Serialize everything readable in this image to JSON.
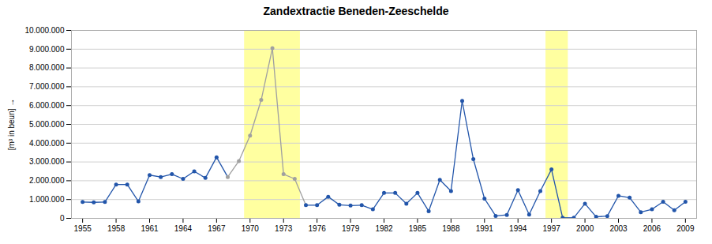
{
  "chart_data": {
    "type": "line",
    "title": "Zandextractie Beneden-Zeeschelde",
    "ylabel": "[m³ in beun]",
    "x": [
      1955,
      1956,
      1957,
      1958,
      1959,
      1960,
      1961,
      1962,
      1963,
      1964,
      1965,
      1966,
      1967,
      1968,
      1969,
      1970,
      1971,
      1972,
      1973,
      1974,
      1975,
      1976,
      1977,
      1978,
      1979,
      1980,
      1981,
      1982,
      1983,
      1984,
      1985,
      1986,
      1987,
      1988,
      1989,
      1990,
      1991,
      1992,
      1993,
      1994,
      1995,
      1996,
      1997,
      1998,
      1999,
      2000,
      2001,
      2002,
      2003,
      2004,
      2005,
      2006,
      2007,
      2008,
      2009
    ],
    "values": [
      870000,
      850000,
      870000,
      1800000,
      1800000,
      900000,
      2300000,
      2200000,
      2350000,
      2100000,
      2500000,
      2150000,
      3250000,
      2200000,
      3050000,
      4400000,
      6300000,
      9050000,
      2350000,
      2100000,
      700000,
      700000,
      1150000,
      720000,
      680000,
      700000,
      480000,
      1350000,
      1350000,
      780000,
      1350000,
      380000,
      2050000,
      1450000,
      6250000,
      3150000,
      1050000,
      130000,
      180000,
      1500000,
      200000,
      1450000,
      2600000,
      30000,
      30000,
      780000,
      80000,
      120000,
      1200000,
      1100000,
      330000,
      480000,
      880000,
      430000,
      880000
    ],
    "colors": [
      "#2255aa",
      "#2255aa",
      "#2255aa",
      "#2255aa",
      "#2255aa",
      "#2255aa",
      "#2255aa",
      "#2255aa",
      "#2255aa",
      "#2255aa",
      "#2255aa",
      "#2255aa",
      "#2255aa",
      "#a0a0a0",
      "#a0a0a0",
      "#a0a0a0",
      "#a0a0a0",
      "#a0a0a0",
      "#a0a0a0",
      "#a0a0a0",
      "#2255aa",
      "#2255aa",
      "#2255aa",
      "#2255aa",
      "#2255aa",
      "#2255aa",
      "#2255aa",
      "#2255aa",
      "#2255aa",
      "#2255aa",
      "#2255aa",
      "#2255aa",
      "#2255aa",
      "#2255aa",
      "#2255aa",
      "#2255aa",
      "#2255aa",
      "#2255aa",
      "#2255aa",
      "#2255aa",
      "#2255aa",
      "#2255aa",
      "#2255aa",
      "#2255aa",
      "#2255aa",
      "#2255aa",
      "#2255aa",
      "#2255aa",
      "#2255aa",
      "#2255aa",
      "#2255aa",
      "#2255aa",
      "#2255aa",
      "#2255aa",
      "#2255aa"
    ],
    "marker": "circle",
    "highlight_regions": [
      {
        "xstart": 1969.5,
        "xend": 1974.5,
        "color": "#ffffa0"
      },
      {
        "xstart": 1996.5,
        "xend": 1998.5,
        "color": "#ffffa0"
      }
    ],
    "xlim": [
      1954,
      2010
    ],
    "xticks": [
      1955,
      1958,
      1961,
      1964,
      1967,
      1970,
      1973,
      1976,
      1979,
      1982,
      1985,
      1988,
      1991,
      1994,
      1997,
      2000,
      2003,
      2006,
      2009
    ],
    "ylim": [
      0,
      10000000
    ],
    "yticks": [
      0,
      {
        "value": 1000000,
        "label": "1.000.000"
      },
      {
        "value": 2000000,
        "label": "2.000.000"
      },
      {
        "value": 3000000,
        "label": "3.000.000"
      },
      {
        "value": 4000000,
        "label": "4.000.000"
      },
      {
        "value": 5000000,
        "label": "5.000.000"
      },
      {
        "value": 6000000,
        "label": "6.000.000"
      },
      {
        "value": 7000000,
        "label": "7.000.000"
      },
      {
        "value": 8000000,
        "label": "8.000.000"
      },
      {
        "value": 9000000,
        "label": "9.000.000"
      },
      {
        "value": 10000000,
        "label": "10.000.000"
      }
    ],
    "grid": true
  }
}
